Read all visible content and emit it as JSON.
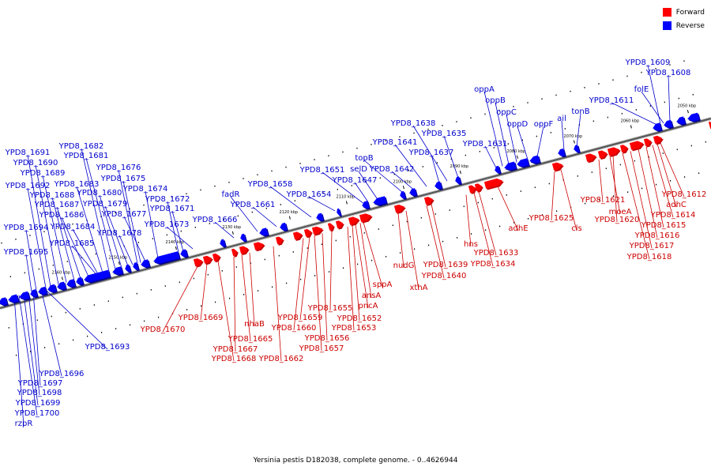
{
  "legend": {
    "forward_label": "Forward",
    "reverse_label": "Reverse",
    "forward_color": "#ff0000",
    "reverse_color": "#0000ff"
  },
  "caption": "Yersinia pestis D182038, complete genome. - 0..4626944",
  "ticks": [
    "2050 kbp",
    "2060 kbp",
    "2070 kbp",
    "2080 kbp",
    "2090 kbp",
    "2100 kbp",
    "2110 kbp",
    "2120 kbp",
    "2130 kbp",
    "2140 kbp",
    "2150 kbp",
    "2160 kbp"
  ],
  "reverse_labels": [
    "YPD8_1609",
    "YPD8_1608",
    "folE",
    "YPD8_1611",
    "tonB",
    "ail",
    "oppF",
    "oppD",
    "oppC",
    "oppB",
    "oppA",
    "YPD8_1631",
    "YPD8_1635",
    "YPD8_1638",
    "YPD8_1637",
    "YPD8_1641",
    "YPD8_1642",
    "topB",
    "selD",
    "YPD8_1647",
    "YPD8_1651",
    "YPD8_1654",
    "YPD8_1658",
    "YPD8_1661",
    "fadR",
    "YPD8_1666",
    "YPD8_1673",
    "YPD8_1671",
    "YPD8_1672",
    "YPD8_1674",
    "YPD8_1675",
    "YPD8_1676",
    "YPD8_1677",
    "YPD8_1678",
    "YPD8_1679",
    "YPD8_1680",
    "YPD8_1681",
    "YPD8_1682",
    "YPD8_1683",
    "YPD8_1684",
    "YPD8_1685",
    "YPD8_1686",
    "YPD8_1687",
    "YPD8_1688",
    "YPD8_1689",
    "YPD8_1690",
    "YPD8_1691",
    "YPD8_1692",
    "YPD8_1694",
    "YPD8_1695",
    "YPD8_1693",
    "YPD8_1696",
    "YPD8_1697",
    "YPD8_1698",
    "YPD8_1699",
    "YPD8_1700",
    "rzpR"
  ],
  "forward_labels": [
    "YPD8_1612",
    "adhC",
    "YPD8_1614",
    "YPD8_1615",
    "YPD8_1616",
    "YPD8_1617",
    "YPD8_1618",
    "moeA",
    "YPD8_1620",
    "YPD8_1621",
    "cls",
    "YPD8_1625",
    "adhE",
    "YPD8_1633",
    "YPD8_1634",
    "hns",
    "YPD8_1639",
    "YPD8_1640",
    "nudG",
    "xthA",
    "sppA",
    "ansA",
    "pncA",
    "YPD8_1652",
    "YPD8_1653",
    "YPD8_1655",
    "YPD8_1656",
    "YPD8_1657",
    "YPD8_1659",
    "YPD8_1660",
    "YPD8_1662",
    "nhaB",
    "YPD8_1665",
    "YPD8_1667",
    "YPD8_1668",
    "YPD8_1669",
    "YPD8_1670"
  ]
}
